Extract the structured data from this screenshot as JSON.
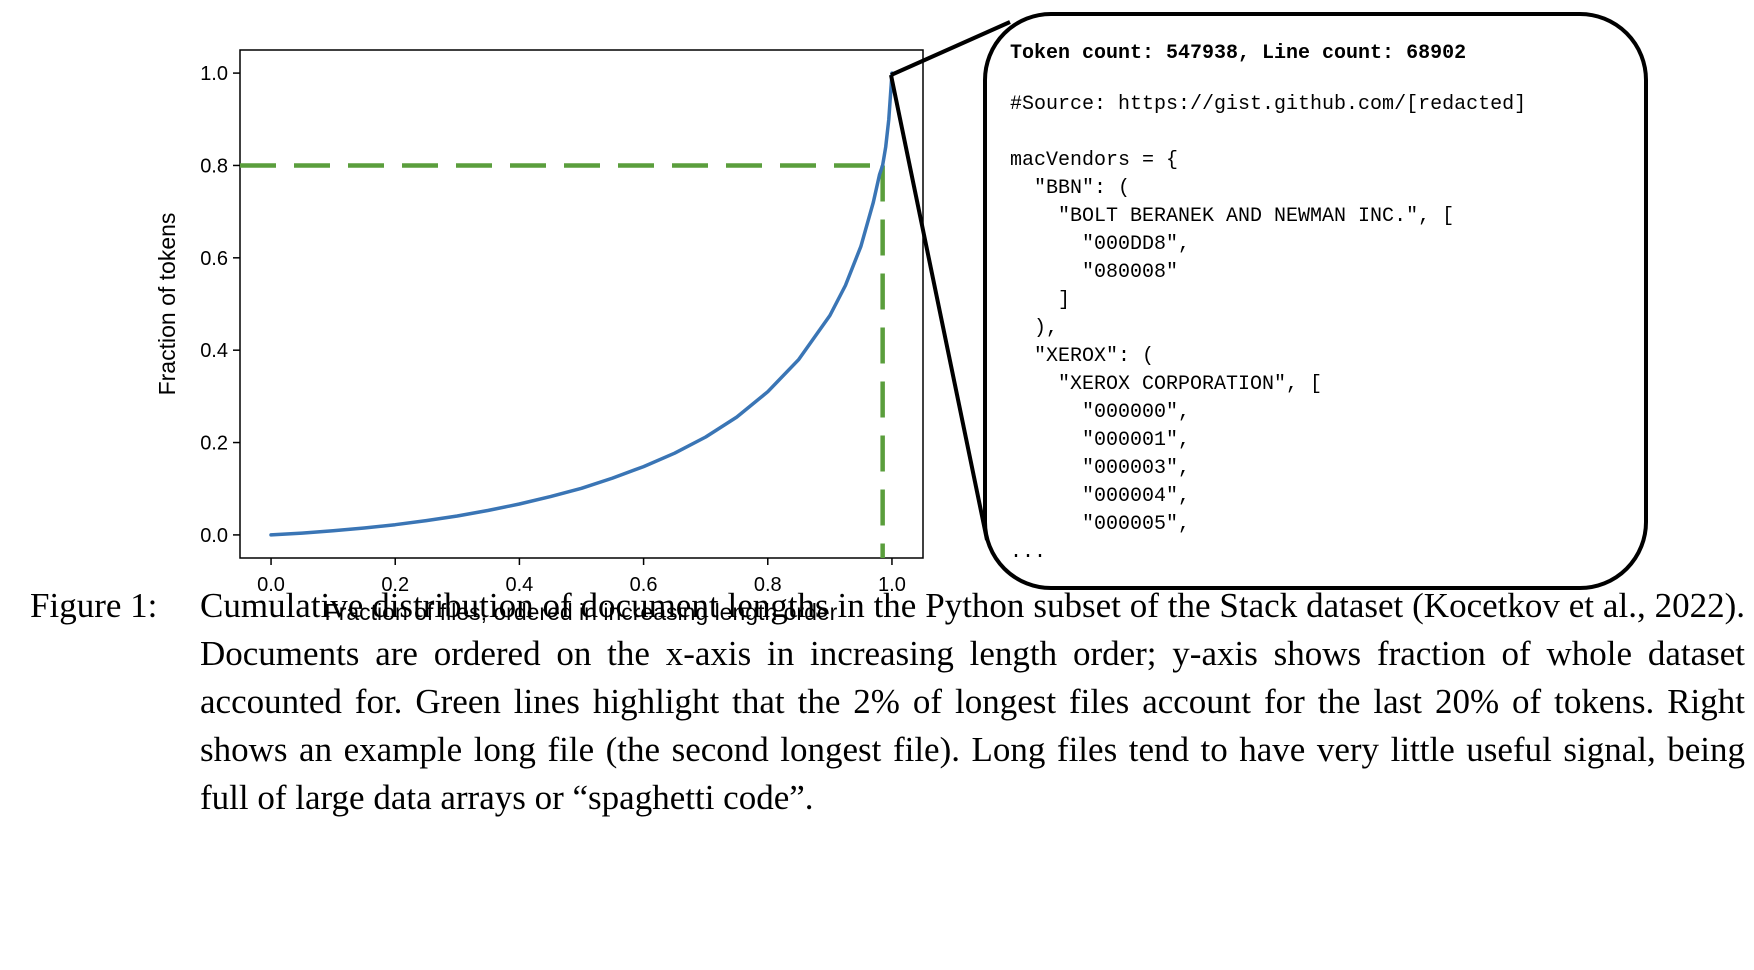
{
  "chart_data": {
    "type": "line",
    "xlabel": "Fraction of files, ordered in increasing length order",
    "ylabel": "Fraction of tokens",
    "xlim": [
      -0.05,
      1.05
    ],
    "ylim": [
      -0.05,
      1.05
    ],
    "xticks": [
      "0.0",
      "0.2",
      "0.4",
      "0.6",
      "0.8",
      "1.0"
    ],
    "yticks": [
      "0.0",
      "0.2",
      "0.4",
      "0.6",
      "0.8",
      "1.0"
    ],
    "xtick_values": [
      0.0,
      0.2,
      0.4,
      0.6,
      0.8,
      1.0
    ],
    "ytick_values": [
      0.0,
      0.2,
      0.4,
      0.6,
      0.8,
      1.0
    ],
    "grid": false,
    "series": [
      {
        "color": "#3a75b5",
        "x": [
          0.0,
          0.05,
          0.1,
          0.15,
          0.2,
          0.25,
          0.3,
          0.35,
          0.4,
          0.45,
          0.5,
          0.55,
          0.6,
          0.65,
          0.7,
          0.75,
          0.8,
          0.85,
          0.9,
          0.925,
          0.95,
          0.97,
          0.98,
          0.985,
          0.99,
          0.995,
          1.0
        ],
        "y": [
          0.0,
          0.004,
          0.009,
          0.015,
          0.022,
          0.031,
          0.041,
          0.053,
          0.067,
          0.083,
          0.101,
          0.123,
          0.148,
          0.177,
          0.212,
          0.255,
          0.31,
          0.38,
          0.475,
          0.54,
          0.625,
          0.72,
          0.78,
          0.8,
          0.84,
          0.9,
          1.0
        ]
      }
    ],
    "reference_lines": {
      "color": "#5a9e3c",
      "style": "dashed",
      "horizontal_y": 0.8,
      "vertical_x": 0.985
    }
  },
  "code_box": {
    "header": "Token count: 547938, Line count: 68902",
    "lines": [
      "#Source: https://gist.github.com/[redacted]",
      "",
      "macVendors = {",
      "  \"BBN\": (",
      "    \"BOLT BERANEK AND NEWMAN INC.\", [",
      "      \"000DD8\",",
      "      \"080008\"",
      "    ]",
      "  ),",
      "  \"XEROX\": (",
      "    \"XEROX CORPORATION\", [",
      "      \"000000\",",
      "      \"000001\",",
      "      \"000003\",",
      "      \"000004\",",
      "      \"000005\",",
      "..."
    ]
  },
  "caption": {
    "label": "Figure 1:",
    "text": "Cumulative distribution of document lengths in the Python subset of the Stack dataset (Kocetkov et al., 2022). Documents are ordered on the x-axis in increasing length order; y-axis shows fraction of whole dataset accounted for. Green lines highlight that the 2% of longest files account for the last 20% of tokens. Right shows an example long file (the second longest file). Long files tend to have very little useful signal, being full of large data arrays or “spaghetti code”."
  }
}
